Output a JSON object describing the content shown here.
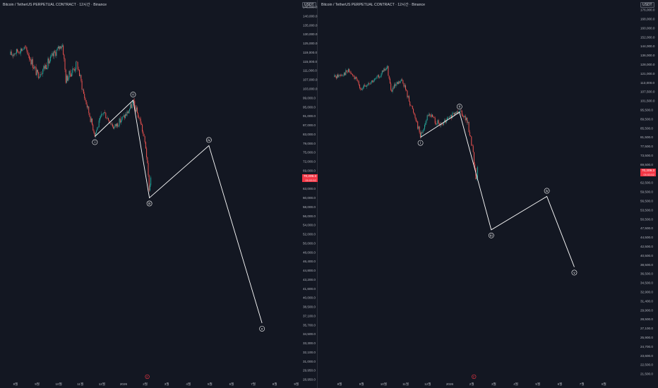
{
  "chart_data": [
    {
      "type": "line",
      "title": "Bitcoin / TetherUS PERPETUAL CONTRACT · 12시간 · Binance",
      "currency": "USDT",
      "price_tag": {
        "value": "70,209.3",
        "countdown": "05:53:52"
      },
      "y_ticks": [
        "146,000.0",
        "140,000.0",
        "135,000.0",
        "130,000.0",
        "125,000.0",
        "119,000.0",
        "115,000.0",
        "111,000.0",
        "107,000.0",
        "103,000.0",
        "99,000.0",
        "95,000.0",
        "91,000.0",
        "87,000.0",
        "83,000.0",
        "79,000.0",
        "75,000.0",
        "72,000.0",
        "69,000.0",
        "66,000.0",
        "63,000.0",
        "60,000.0",
        "58,000.0",
        "56,000.0",
        "54,000.0",
        "52,000.0",
        "50,000.0",
        "48,000.0",
        "46,400.0",
        "44,800.0",
        "43,200.0",
        "41,600.0",
        "40,000.0",
        "38,500.0",
        "37,100.0",
        "35,700.0",
        "34,500.0",
        "33,300.0",
        "32,100.0",
        "31,000.0",
        "29,950.0",
        "28,950.0"
      ],
      "x_ticks": [
        "8월",
        "9월",
        "10월",
        "11월",
        "12월",
        "2026",
        "2월",
        "3월",
        "4월",
        "5월",
        "6월",
        "7월",
        "8월",
        "9월"
      ],
      "waves": [
        {
          "label": "i",
          "price": 82000,
          "date": "2025-11-21"
        },
        {
          "label": "ii",
          "price": 98000,
          "date": "2026-01-14"
        },
        {
          "label": "iii",
          "price": 60000,
          "date": "2026-02-06"
        },
        {
          "label": "iv",
          "price": 78000,
          "date": "2026-05-01"
        },
        {
          "label": "v",
          "price": 36000,
          "date": "2026-07-15"
        }
      ]
    },
    {
      "type": "line",
      "title": "Bitcoin / TetherUS PERPETUAL CONTRACT · 12시간 · Binance",
      "currency": "USDT",
      "price_tag": {
        "value": "70,209.3",
        "countdown": "05:53:52"
      },
      "y_ticks": [
        "176,000.0",
        "168,000.0",
        "160,000.0",
        "152,000.0",
        "144,000.0",
        "136,000.0",
        "128,000.0",
        "121,000.0",
        "113,000.0",
        "107,500.0",
        "101,500.0",
        "95,500.0",
        "89,500.0",
        "85,500.0",
        "81,500.0",
        "77,500.0",
        "73,500.0",
        "69,500.0",
        "65,500.0",
        "62,500.0",
        "59,500.0",
        "56,500.0",
        "53,500.0",
        "50,500.0",
        "47,500.0",
        "44,500.0",
        "42,500.0",
        "40,500.0",
        "38,500.0",
        "36,500.0",
        "34,500.0",
        "32,900.0",
        "31,400.0",
        "29,900.0",
        "28,500.0",
        "27,100.0",
        "25,900.0",
        "24,700.0",
        "23,600.0",
        "22,500.0",
        "21,500.0"
      ],
      "x_ticks": [
        "8월",
        "9월",
        "10월",
        "11월",
        "12월",
        "2026",
        "2월",
        "3월",
        "4월",
        "5월",
        "6월",
        "7월",
        "8월"
      ],
      "waves": [
        {
          "label": "i",
          "price": 81500,
          "date": "2025-11-21"
        },
        {
          "label": "ii",
          "price": 94000,
          "date": "2026-01-14"
        },
        {
          "label": "iii",
          "price": 47000,
          "date": "2026-02-27"
        },
        {
          "label": "iv",
          "price": 58000,
          "date": "2026-05-15"
        },
        {
          "label": "v",
          "price": 38000,
          "date": "2026-06-22"
        }
      ]
    }
  ],
  "event_marker": "F"
}
